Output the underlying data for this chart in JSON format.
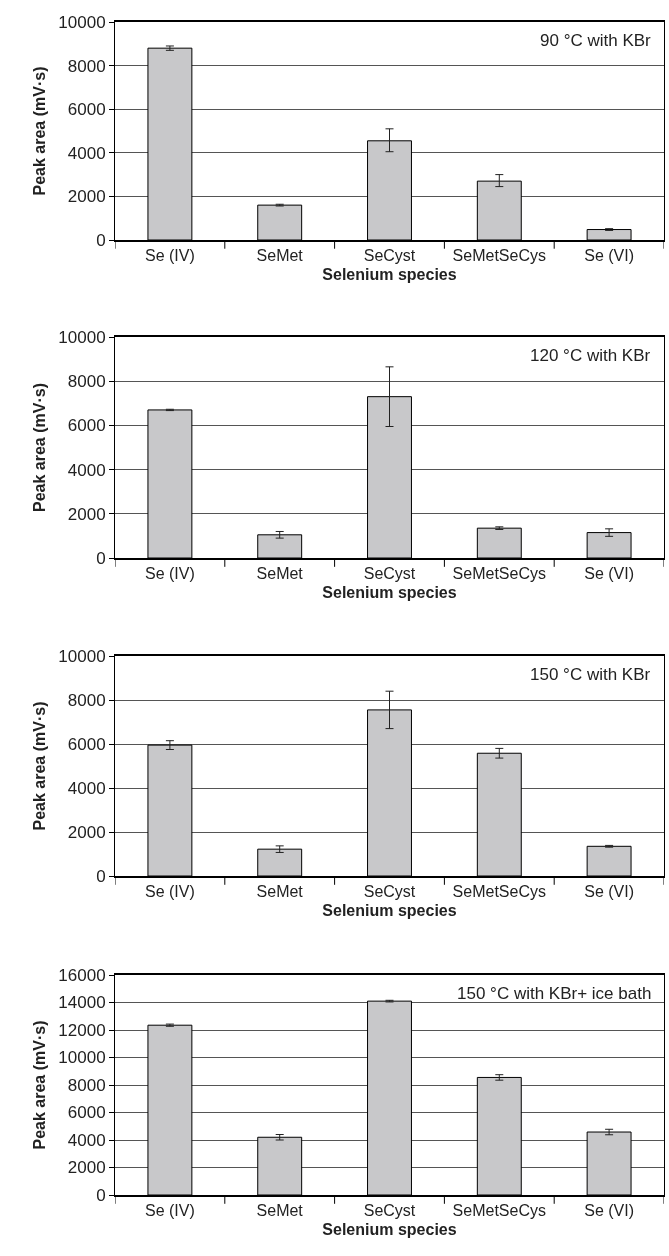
{
  "chart_data": [
    {
      "type": "bar",
      "xlabel": "Selenium species",
      "ylabel": "Peak area (mV·s)",
      "annotations": [
        "90 °C with KBr"
      ],
      "categories": [
        "Se (IV)",
        "SeMet",
        "SeCyst",
        "SeMetSeCys",
        "Se (VI)"
      ],
      "color": "#c8c8ca",
      "grid": "y",
      "ylim": [
        0,
        10000
      ],
      "yticks": [
        0,
        2000,
        4000,
        6000,
        8000,
        10000
      ],
      "values": [
        8800,
        1600,
        4550,
        2700,
        480
      ],
      "errors": [
        100,
        40,
        [
          4050,
          5100
        ],
        [
          2450,
          3000
        ],
        40
      ]
    },
    {
      "type": "bar",
      "xlabel": "Selenium species",
      "ylabel": "Peak area (mV·s)",
      "annotations": [
        "120 °C with KBr"
      ],
      "categories": [
        "Se (IV)",
        "SeMet",
        "SeCyst",
        "SeMetSeCys",
        "Se (VI)"
      ],
      "color": "#c8c8ca",
      "grid": "y",
      "ylim": [
        0,
        10000
      ],
      "yticks": [
        0,
        2000,
        4000,
        6000,
        8000,
        10000
      ],
      "values": [
        6700,
        1050,
        7300,
        1350,
        1150
      ],
      "errors": [
        30,
        150,
        [
          5950,
          8650
        ],
        60,
        170
      ]
    },
    {
      "type": "bar",
      "xlabel": "Selenium species",
      "ylabel": "Peak area (mV·s)",
      "annotations": [
        "150 °C with KBr"
      ],
      "categories": [
        "Se (IV)",
        "SeMet",
        "SeCyst",
        "SeMetSeCys",
        "Se (VI)"
      ],
      "color": "#c8c8ca",
      "grid": "y",
      "ylim": [
        0,
        10000
      ],
      "yticks": [
        0,
        2000,
        4000,
        6000,
        8000,
        10000
      ],
      "values": [
        5950,
        1220,
        7550,
        5580,
        1350
      ],
      "errors": [
        200,
        150,
        [
          6700,
          8400
        ],
        220,
        40
      ]
    },
    {
      "type": "bar",
      "xlabel": "Selenium species",
      "ylabel": "Peak area (mV·s)",
      "annotations": [
        "150 °C with KBr+ ice bath"
      ],
      "categories": [
        "Se (IV)",
        "SeMet",
        "SeCyst",
        "SeMetSeCys",
        "Se (VI)"
      ],
      "color": "#c8c8ca",
      "grid": "y",
      "ylim": [
        0,
        16000
      ],
      "yticks": [
        0,
        2000,
        4000,
        6000,
        8000,
        10000,
        12000,
        14000,
        16000
      ],
      "values": [
        12350,
        4200,
        14100,
        8550,
        4580
      ],
      "errors": [
        80,
        200,
        60,
        200,
        200
      ]
    }
  ]
}
